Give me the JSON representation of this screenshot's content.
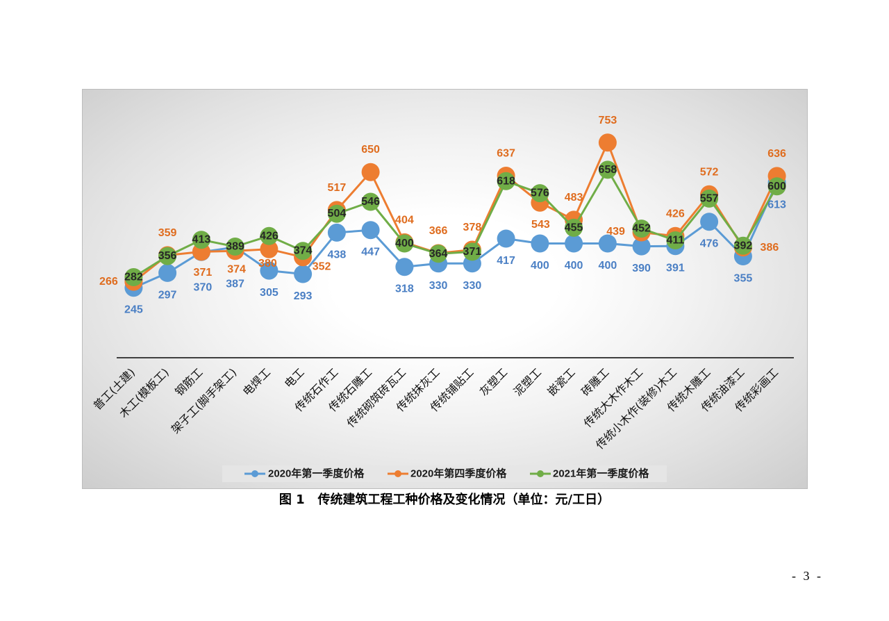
{
  "chart_data": {
    "type": "line",
    "categories": [
      "普工(土建)",
      "木工(模板工)",
      "钢筋工",
      "架子工(脚手架工)",
      "电焊工",
      "电工",
      "传统石作工",
      "传统石雕工",
      "传统砌筑砖瓦工",
      "传统抹灰工",
      "传统铺贴工",
      "灰塑工",
      "泥塑工",
      "嵌瓷工",
      "砖雕工",
      "传统大木作木工",
      "传统小木作(装修)木工",
      "传统木雕工",
      "传统油漆工",
      "传统彩画工"
    ],
    "series": [
      {
        "name": "2020年第一季度价格",
        "color": "#5B9BD5",
        "label_color": "#4A7FC4",
        "values": [
          245,
          297,
          370,
          387,
          305,
          293,
          438,
          447,
          318,
          330,
          330,
          417,
          400,
          400,
          400,
          390,
          391,
          476,
          355,
          613
        ]
      },
      {
        "name": "2020年第四季度价格",
        "color": "#ED7D31",
        "label_color": "#DF6C1E",
        "values": [
          266,
          359,
          371,
          374,
          380,
          352,
          517,
          650,
          404,
          366,
          378,
          637,
          543,
          483,
          753,
          439,
          426,
          572,
          386,
          636
        ]
      },
      {
        "name": "2021年第一季度价格",
        "color": "#70AD47",
        "label_color": "#262626",
        "values": [
          282,
          356,
          413,
          389,
          426,
          374,
          504,
          546,
          400,
          364,
          371,
          618,
          576,
          455,
          658,
          452,
          411,
          557,
          392,
          600
        ]
      }
    ],
    "ylim": [
      0,
      800
    ],
    "markers": "circle",
    "data_labels": true,
    "grid": false,
    "y_axis_visible": false,
    "legend": "bottom"
  },
  "document": {
    "figure_caption": "图 1   传统建筑工程工种价格及变化情况（单位：元/工日）",
    "page_number": "- 3 -"
  }
}
